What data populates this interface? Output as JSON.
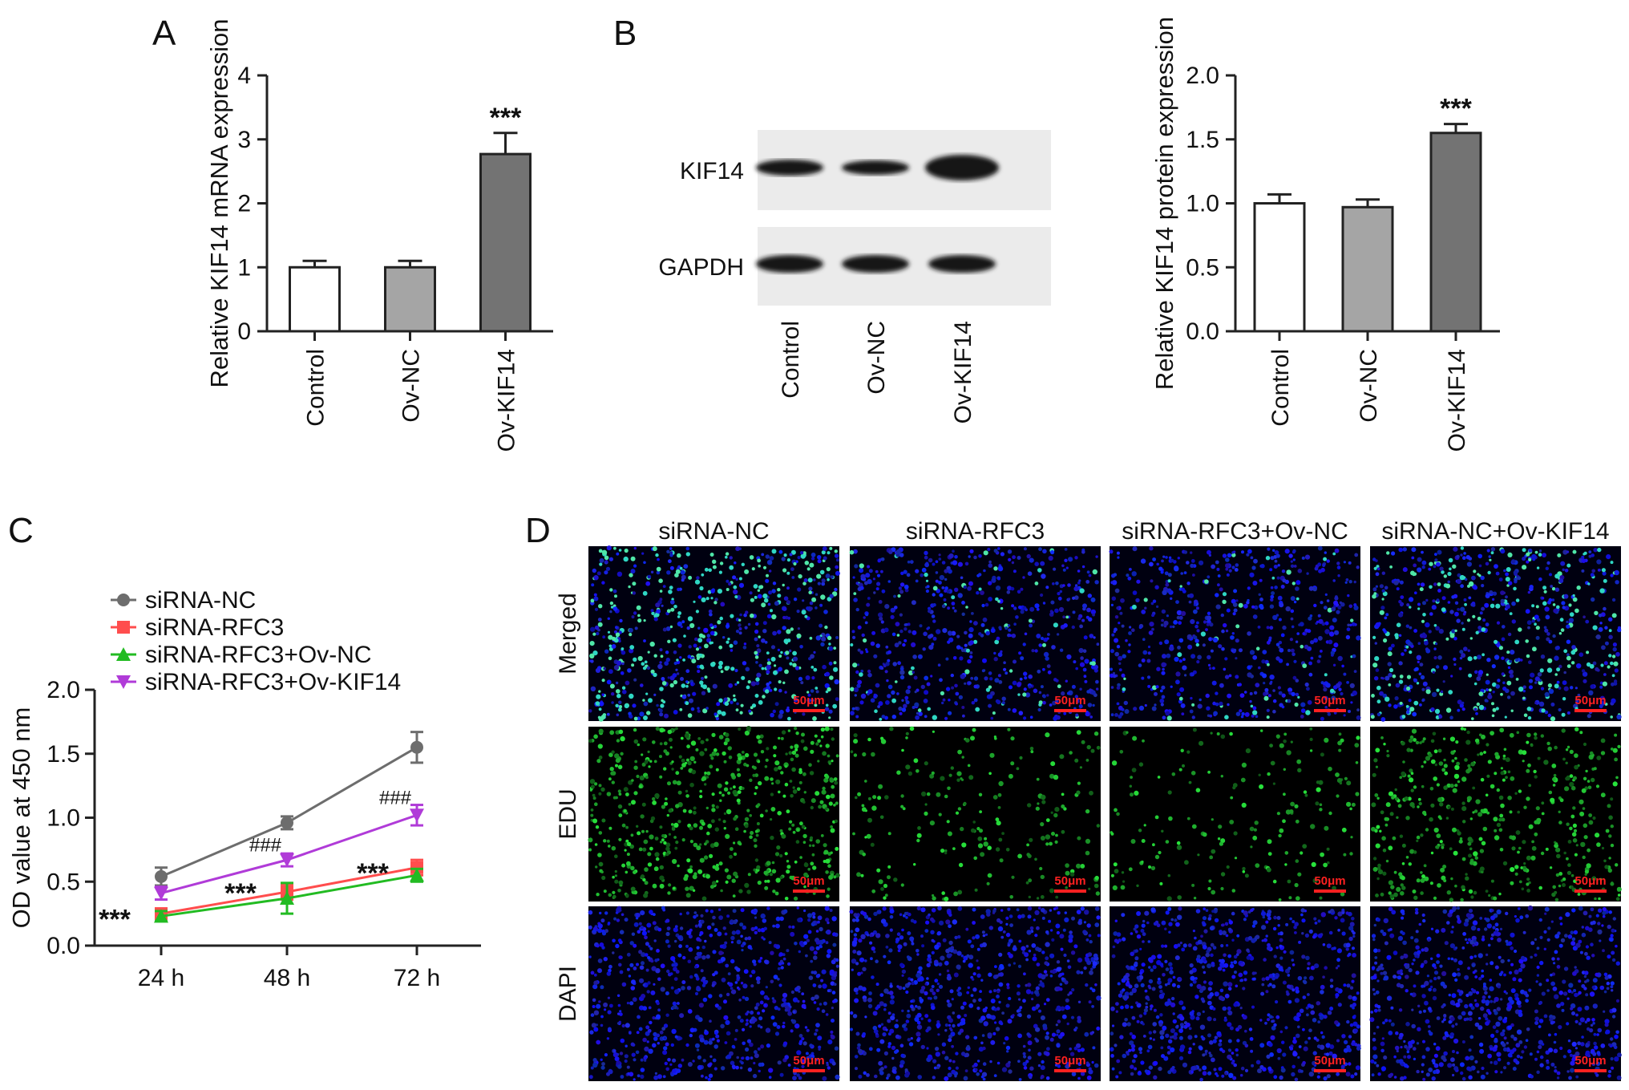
{
  "figure": {
    "panels": {
      "A": "A",
      "B": "B",
      "C": "C",
      "D": "D"
    },
    "blot": {
      "rows": [
        "KIF14",
        "GAPDH"
      ],
      "lanes": [
        "Control",
        "Ov-NC",
        "Ov-KIF14"
      ]
    },
    "microscopy": {
      "columns": [
        "siRNA-NC",
        "siRNA-RFC3",
        "siRNA-RFC3+Ov-NC",
        "siRNA-NC+Ov-KIF14"
      ],
      "rows": [
        "Merged",
        "EDU",
        "DAPI"
      ],
      "scale_bar": "50μm",
      "cell_density": [
        [
          0.82,
          0.72,
          0.7,
          0.8
        ],
        [
          0.7,
          0.25,
          0.22,
          0.55
        ],
        [
          0.85,
          0.85,
          0.85,
          0.85
        ]
      ],
      "edu_fraction": [
        0.45,
        0.1,
        0.08,
        0.3
      ]
    }
  },
  "chart_data": [
    {
      "panel": "A",
      "type": "bar",
      "categories": [
        "Control",
        "Ov-NC",
        "Ov-KIF14"
      ],
      "values": [
        1.0,
        1.0,
        2.77
      ],
      "errors": [
        0.1,
        0.1,
        0.33
      ],
      "colors": [
        "#ffffff",
        "#a5a5a5",
        "#737373"
      ],
      "significance": [
        "",
        "",
        "***"
      ],
      "ylabel": "Relative KIF14 mRNA expression",
      "ylim": [
        0,
        4
      ],
      "yticks": [
        "0",
        "1",
        "2",
        "3",
        "4"
      ]
    },
    {
      "panel": "B",
      "type": "bar",
      "categories": [
        "Control",
        "Ov-NC",
        "Ov-KIF14"
      ],
      "values": [
        1.0,
        0.97,
        1.55
      ],
      "errors": [
        0.07,
        0.06,
        0.07
      ],
      "colors": [
        "#ffffff",
        "#a5a5a5",
        "#737373"
      ],
      "significance": [
        "",
        "",
        "***"
      ],
      "ylabel": "Relative KIF14 protein expression",
      "ylim": [
        0,
        2.0
      ],
      "yticks": [
        "0.0",
        "0.5",
        "1.0",
        "1.5",
        "2.0"
      ]
    },
    {
      "panel": "C",
      "type": "line",
      "x": [
        "24 h",
        "48 h",
        "72 h"
      ],
      "series": [
        {
          "name": "siRNA-NC",
          "values": [
            0.54,
            0.96,
            1.55
          ],
          "errors": [
            0.07,
            0.05,
            0.12
          ],
          "color": "#6d6d6d",
          "marker": "circle"
        },
        {
          "name": "siRNA-RFC3",
          "values": [
            0.25,
            0.42,
            0.61
          ],
          "errors": [
            0.04,
            0.06,
            0.06
          ],
          "color": "#ff4d4d",
          "marker": "square"
        },
        {
          "name": "siRNA-RFC3+Ov-NC",
          "values": [
            0.23,
            0.37,
            0.55
          ],
          "errors": [
            0.04,
            0.12,
            0.05
          ],
          "color": "#22bb22",
          "marker": "triangle-up"
        },
        {
          "name": "siRNA-RFC3+Ov-KIF14",
          "values": [
            0.41,
            0.67,
            1.02
          ],
          "errors": [
            0.05,
            0.05,
            0.08
          ],
          "color": "#b03bd8",
          "marker": "triangle-down"
        }
      ],
      "annotations": [
        {
          "text": "***",
          "x": "24 h",
          "y": 0.26
        },
        {
          "text": "***",
          "x": "48 h",
          "y": 0.44
        },
        {
          "text": "***",
          "x": "72 h",
          "y": 0.62
        },
        {
          "text": "###",
          "x": "48 h",
          "y": 0.7
        },
        {
          "text": "###",
          "x": "72 h",
          "y": 1.07
        }
      ],
      "ylabel": "OD value at 450 nm",
      "ylim": [
        0,
        2.0
      ],
      "yticks": [
        "0.0",
        "0.5",
        "1.0",
        "1.5",
        "2.0"
      ],
      "legend_position": "top-left"
    }
  ]
}
